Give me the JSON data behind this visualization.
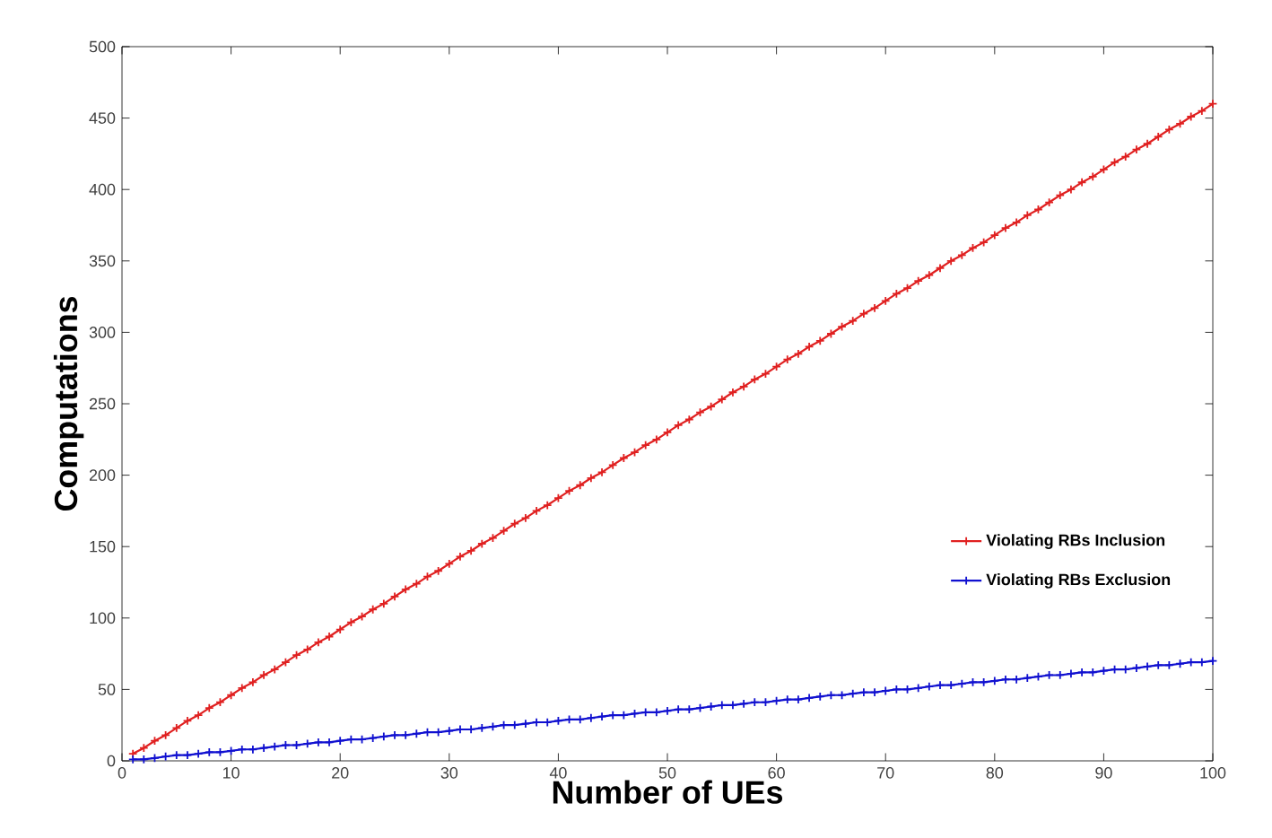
{
  "chart_data": {
    "type": "line",
    "xlabel": "Number of UEs",
    "ylabel": "Computations",
    "xlim": [
      0,
      100
    ],
    "xticks": [
      0,
      10,
      20,
      30,
      40,
      50,
      60,
      70,
      80,
      90,
      100
    ],
    "ylim": [
      0,
      500
    ],
    "yticks": [
      0,
      50,
      100,
      150,
      200,
      250,
      300,
      350,
      400,
      450,
      500
    ],
    "grid": false,
    "legend": "right",
    "marker": "cross",
    "line_style": "solid",
    "x": [
      1,
      2,
      3,
      4,
      5,
      6,
      7,
      8,
      9,
      10,
      11,
      12,
      13,
      14,
      15,
      16,
      17,
      18,
      19,
      20,
      21,
      22,
      23,
      24,
      25,
      26,
      27,
      28,
      29,
      30,
      31,
      32,
      33,
      34,
      35,
      36,
      37,
      38,
      39,
      40,
      41,
      42,
      43,
      44,
      45,
      46,
      47,
      48,
      49,
      50,
      51,
      52,
      53,
      54,
      55,
      56,
      57,
      58,
      59,
      60,
      61,
      62,
      63,
      64,
      65,
      66,
      67,
      68,
      69,
      70,
      71,
      72,
      73,
      74,
      75,
      76,
      77,
      78,
      79,
      80,
      81,
      82,
      83,
      84,
      85,
      86,
      87,
      88,
      89,
      90,
      91,
      92,
      93,
      94,
      95,
      96,
      97,
      98,
      99,
      100
    ],
    "series": [
      {
        "name": "Violating RBs Inclusion",
        "color": "#e02020",
        "values": [
          5,
          9,
          14,
          18,
          23,
          28,
          32,
          37,
          41,
          46,
          51,
          55,
          60,
          64,
          69,
          74,
          78,
          83,
          87,
          92,
          97,
          101,
          106,
          110,
          115,
          120,
          124,
          129,
          133,
          138,
          143,
          147,
          152,
          156,
          161,
          166,
          170,
          175,
          179,
          184,
          189,
          193,
          198,
          202,
          207,
          212,
          216,
          221,
          225,
          230,
          235,
          239,
          244,
          248,
          253,
          258,
          262,
          267,
          271,
          276,
          281,
          285,
          290,
          294,
          299,
          304,
          308,
          313,
          317,
          322,
          327,
          331,
          336,
          340,
          345,
          350,
          354,
          359,
          363,
          368,
          373,
          377,
          382,
          386,
          391,
          396,
          400,
          405,
          409,
          414,
          419,
          423,
          428,
          432,
          437,
          442,
          446,
          451,
          455,
          460
        ]
      },
      {
        "name": "Violating RBs Exclusion",
        "color": "#1010d0",
        "marker": "cross",
        "values": [
          1,
          1,
          2,
          3,
          4,
          4,
          5,
          6,
          6,
          7,
          8,
          8,
          9,
          10,
          11,
          11,
          12,
          13,
          13,
          14,
          15,
          15,
          16,
          17,
          18,
          18,
          19,
          20,
          20,
          21,
          22,
          22,
          23,
          24,
          25,
          25,
          26,
          27,
          27,
          28,
          29,
          29,
          30,
          31,
          32,
          32,
          33,
          34,
          34,
          35,
          36,
          36,
          37,
          38,
          39,
          39,
          40,
          41,
          41,
          42,
          43,
          43,
          44,
          45,
          46,
          46,
          47,
          48,
          48,
          49,
          50,
          50,
          51,
          52,
          53,
          53,
          54,
          55,
          55,
          56,
          57,
          57,
          58,
          59,
          60,
          60,
          61,
          62,
          62,
          63,
          64,
          64,
          65,
          66,
          67,
          67,
          68,
          69,
          69,
          70
        ]
      }
    ]
  }
}
